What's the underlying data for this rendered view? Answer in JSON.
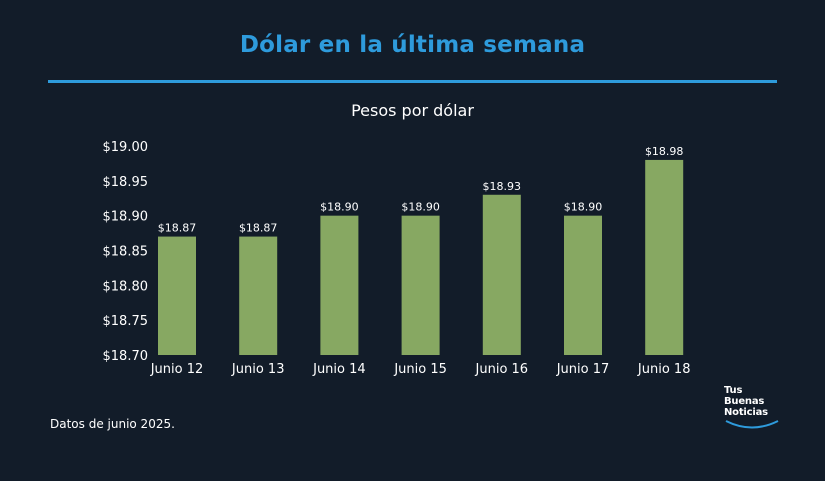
{
  "title": "Dólar en la última semana",
  "footnote": "Datos de junio 2025.",
  "logo": {
    "line1": "Tus",
    "line2": "Buenas",
    "line3": "Noticias"
  },
  "colors": {
    "accent": "#2e9bdc",
    "bar": "#87a862",
    "background": "#121c29"
  },
  "chart_data": {
    "type": "bar",
    "title": "Pesos por dólar",
    "xlabel": "",
    "ylabel": "",
    "categories": [
      "Junio 12",
      "Junio 13",
      "Junio 14",
      "Junio 15",
      "Junio 16",
      "Junio 17",
      "Junio 18"
    ],
    "values": [
      18.87,
      18.87,
      18.9,
      18.9,
      18.93,
      18.9,
      18.98
    ],
    "data_labels": [
      "$18.87",
      "$18.87",
      "$18.90",
      "$18.90",
      "$18.93",
      "$18.90",
      "$18.98"
    ],
    "ylim": [
      18.7,
      19.0
    ],
    "yticks": [
      19.0,
      18.95,
      18.9,
      18.85,
      18.8,
      18.75,
      18.7
    ],
    "ytick_labels": [
      "$19.00",
      "$18.95",
      "$18.90",
      "$18.85",
      "$18.80",
      "$18.75",
      "$18.70"
    ],
    "grid": false,
    "legend": "none"
  }
}
